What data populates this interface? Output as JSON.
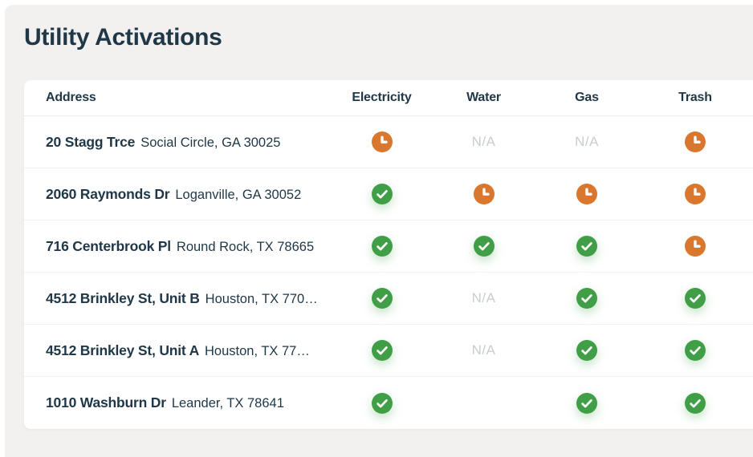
{
  "page": {
    "title": "Utility Activations"
  },
  "colors": {
    "background": "#F2F1EF",
    "navy_text": "#1F3747",
    "complete_green": "#3F9E46",
    "pending_orange": "#D9772E",
    "na_gray": "#C8CDD2"
  },
  "table": {
    "na_label": "N/A",
    "columns": [
      {
        "key": "address",
        "label": "Address"
      },
      {
        "key": "electricity",
        "label": "Electricity"
      },
      {
        "key": "water",
        "label": "Water"
      },
      {
        "key": "gas",
        "label": "Gas"
      },
      {
        "key": "trash",
        "label": "Trash"
      }
    ],
    "status_legend": {
      "complete": "green-check-icon",
      "pending": "orange-clock-icon",
      "na": "not-applicable-text",
      "none": "empty-cell"
    },
    "rows": [
      {
        "street": "20 Stagg Trce",
        "location": "Social Circle, GA 30025",
        "electricity": "pending",
        "water": "na",
        "gas": "na",
        "trash": "pending"
      },
      {
        "street": "2060 Raymonds Dr",
        "location": "Loganville, GA 30052",
        "electricity": "complete",
        "water": "pending",
        "gas": "pending",
        "trash": "pending"
      },
      {
        "street": "716 Centerbrook Pl",
        "location": "Round Rock, TX 78665",
        "electricity": "complete",
        "water": "complete",
        "gas": "complete",
        "trash": "pending"
      },
      {
        "street": "4512 Brinkley St, Unit B",
        "location": "Houston, TX 770…",
        "electricity": "complete",
        "water": "na",
        "gas": "complete",
        "trash": "complete"
      },
      {
        "street": "4512 Brinkley St, Unit A",
        "location": "Houston, TX 77…",
        "electricity": "complete",
        "water": "na",
        "gas": "complete",
        "trash": "complete"
      },
      {
        "street": "1010 Washburn Dr",
        "location": "Leander, TX 78641",
        "electricity": "complete",
        "water": "none",
        "gas": "complete",
        "trash": "complete"
      }
    ]
  }
}
